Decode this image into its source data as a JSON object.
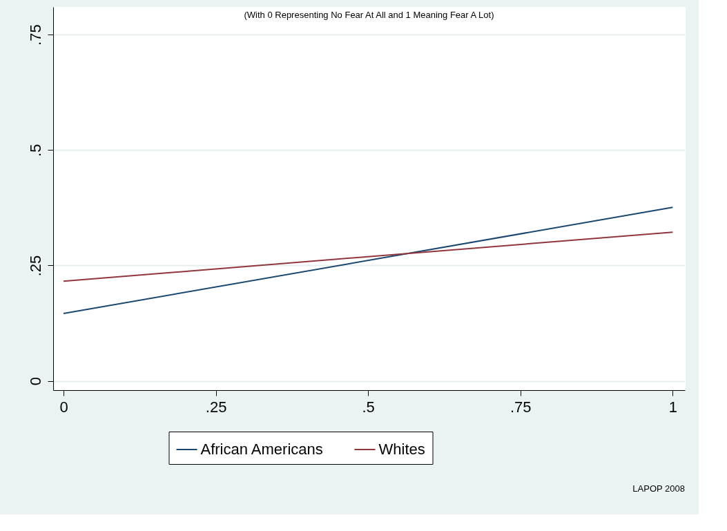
{
  "chart_data": {
    "type": "line",
    "subtitle": "(With 0 Representing No Fear At All and 1 Meaning Fear A Lot)",
    "x": [
      0,
      1
    ],
    "series": [
      {
        "name": "African Americans",
        "color": "#1a476f",
        "values": [
          0.146,
          0.376
        ]
      },
      {
        "name": "Whites",
        "color": "#90353b",
        "values": [
          0.216,
          0.322
        ]
      }
    ],
    "xlim": [
      -0.017,
      1.02
    ],
    "ylim": [
      -0.02,
      0.81
    ],
    "xticks": [
      0,
      {
        "value": 0.25,
        "label": ".25"
      },
      {
        "value": 0.5,
        "label": ".5"
      },
      {
        "value": 0.75,
        "label": ".75"
      },
      1
    ],
    "yticks": [
      0,
      {
        "value": 0.25,
        "label": ".25"
      },
      {
        "value": 0.5,
        "label": ".5"
      },
      {
        "value": 0.75,
        "label": ".75"
      }
    ],
    "grid": "y",
    "legend": "bottom",
    "marker": "none",
    "line_style": "solid",
    "annotations": [
      "LAPOP 2008"
    ]
  }
}
